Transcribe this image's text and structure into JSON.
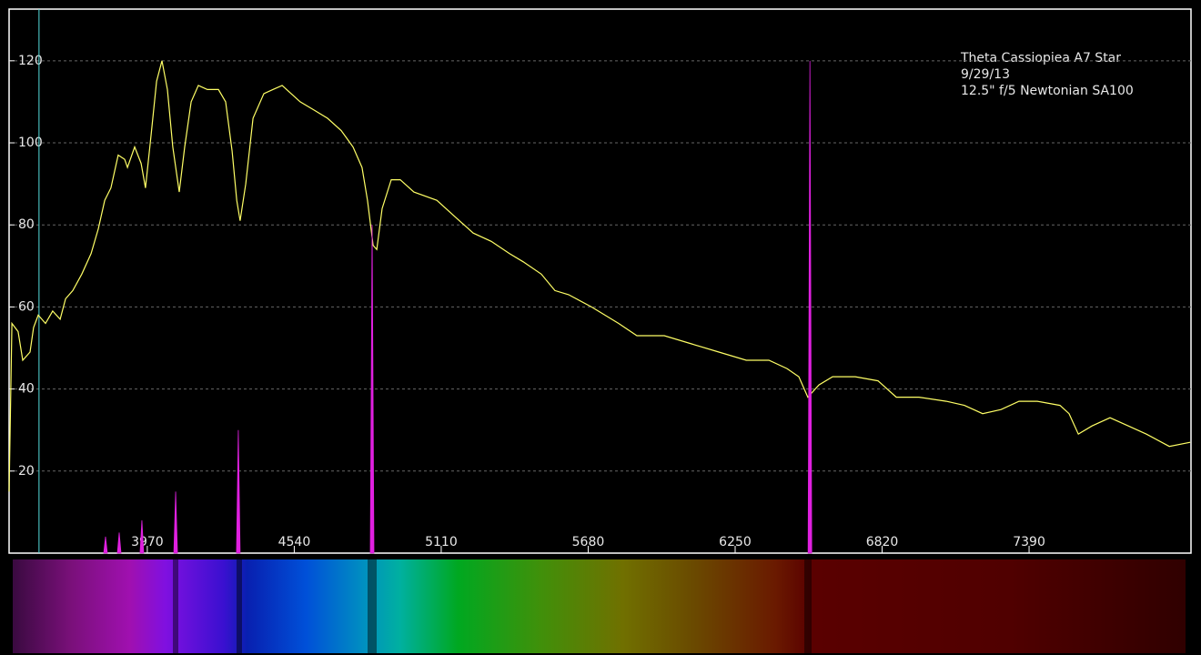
{
  "chart_data": {
    "type": "line",
    "annotations": [
      "Theta Cassiopiea  A7 Star",
      "9/29/13",
      "12.5\" f/5 Newtonian   SA100"
    ],
    "xlim": [
      3434,
      8018
    ],
    "xticks": [
      3970,
      4540,
      5110,
      5680,
      6250,
      6820,
      7390
    ],
    "ylim": [
      0,
      132.6
    ],
    "yticks": [
      20,
      40,
      60,
      80,
      100,
      120
    ],
    "grid": true,
    "marker_line": {
      "x": 3550,
      "color": "#55dddd"
    },
    "series": [
      {
        "color": "#ffff66",
        "style": "line",
        "x": [
          3434,
          3445,
          3469,
          3487,
          3515,
          3529,
          3547,
          3575,
          3603,
          3632,
          3653,
          3681,
          3716,
          3752,
          3780,
          3805,
          3829,
          3857,
          3882,
          3893,
          3921,
          3946,
          3963,
          3985,
          4006,
          4027,
          4048,
          4069,
          4094,
          4115,
          4140,
          4168,
          4203,
          4246,
          4274,
          4299,
          4317,
          4330,
          4352,
          4380,
          4422,
          4457,
          4493,
          4528,
          4563,
          4616,
          4669,
          4722,
          4768,
          4803,
          4824,
          4846,
          4860,
          4881,
          4916,
          4951,
          5004,
          5093,
          5163,
          5234,
          5304,
          5375,
          5428,
          5498,
          5551,
          5604,
          5693,
          5798,
          5869,
          5975,
          6081,
          6187,
          6293,
          6381,
          6451,
          6497,
          6532,
          6575,
          6628,
          6716,
          6804,
          6875,
          6963,
          7069,
          7139,
          7210,
          7281,
          7351,
          7422,
          7510,
          7545,
          7581,
          7634,
          7704,
          7775,
          7845,
          7934,
          8015
        ],
        "values": [
          15,
          56,
          54,
          47,
          49,
          55,
          58,
          56,
          59,
          57,
          62,
          64,
          68,
          73,
          79,
          86,
          89,
          97,
          96,
          94,
          99,
          95,
          89,
          102,
          115,
          120,
          113,
          99,
          88,
          99,
          110,
          114,
          113,
          113,
          110,
          98,
          86,
          81,
          90,
          106,
          112,
          113,
          114,
          112,
          110,
          108,
          106,
          103,
          99,
          94,
          86,
          75,
          74,
          84,
          91,
          91,
          88,
          86,
          82,
          78,
          76,
          73,
          71,
          68,
          64,
          63,
          60,
          56,
          53,
          53,
          51,
          49,
          47,
          47,
          45,
          43,
          38,
          41,
          43,
          43,
          42,
          38,
          38,
          37,
          36,
          34,
          35,
          37,
          37,
          36,
          34,
          29,
          31,
          33,
          31,
          29,
          26,
          27
        ]
      },
      {
        "color": "#e020e0",
        "style": "spike",
        "x": [
          3808,
          3861,
          3949,
          4080,
          4323,
          4842,
          6540
        ],
        "values": [
          4,
          5,
          8,
          15,
          30,
          80,
          120
        ]
      }
    ]
  }
}
